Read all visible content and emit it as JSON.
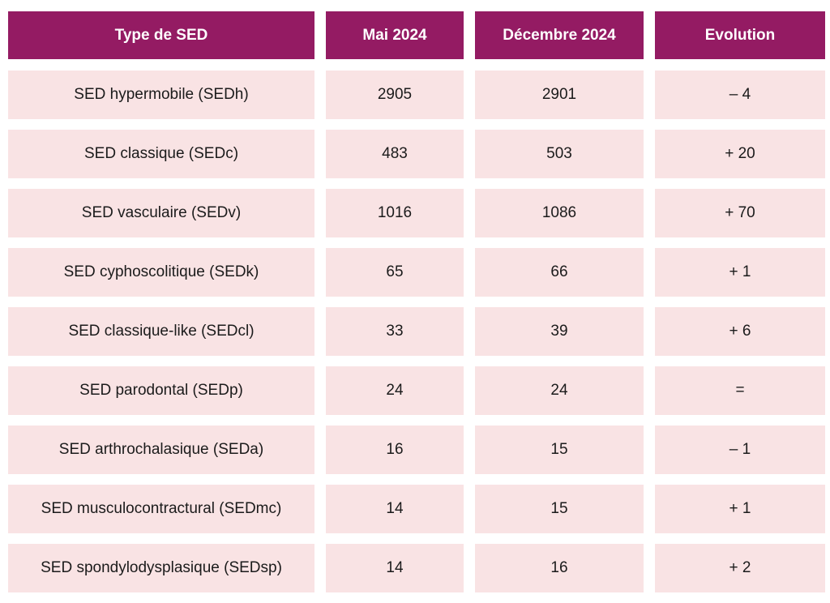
{
  "table": {
    "headers": [
      "Type de SED",
      "Mai 2024",
      "Décembre 2024",
      "Evolution"
    ],
    "rows": [
      [
        "SED hypermobile (SEDh)",
        "2905",
        "2901",
        "– 4"
      ],
      [
        "SED classique (SEDc)",
        "483",
        "503",
        "+ 20"
      ],
      [
        "SED vasculaire (SEDv)",
        "1016",
        "1086",
        "+ 70"
      ],
      [
        "SED cyphoscolitique (SEDk)",
        "65",
        "66",
        "+ 1"
      ],
      [
        "SED classique-like (SEDcl)",
        "33",
        "39",
        "+ 6"
      ],
      [
        "SED parodontal (SEDp)",
        "24",
        "24",
        "="
      ],
      [
        "SED arthrochalasique (SEDa)",
        "16",
        "15",
        "– 1"
      ],
      [
        "SED musculocontractural (SEDmc)",
        "14",
        "15",
        "+ 1"
      ],
      [
        "SED spondylodysplasique (SEDsp)",
        "14",
        "16",
        "+ 2"
      ]
    ]
  },
  "colors": {
    "header_bg": "#941b63",
    "header_text": "#ffffff",
    "cell_bg": "#f9e3e4",
    "cell_text": "#1b1b1b"
  }
}
